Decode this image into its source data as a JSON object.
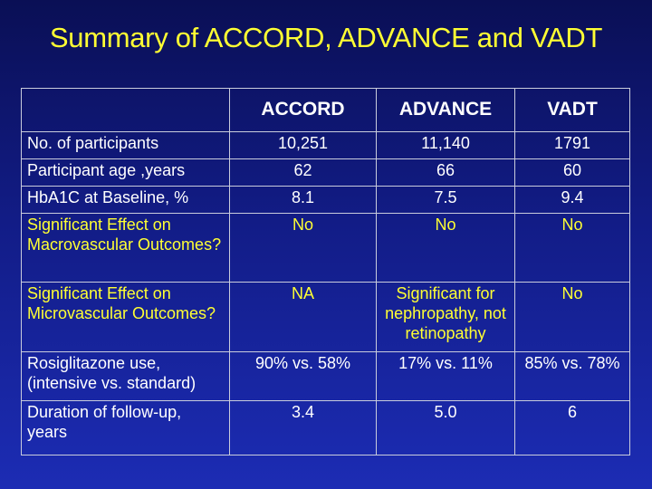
{
  "title": "Summary of ACCORD, ADVANCE and VADT",
  "table": {
    "headers": [
      "",
      "ACCORD",
      "ADVANCE",
      "VADT"
    ],
    "rows": [
      {
        "label": "No. of participants",
        "values": [
          "10,251",
          "11,140",
          "1791"
        ]
      },
      {
        "label": "Participant age ,years",
        "values": [
          "62",
          "66",
          "60"
        ]
      },
      {
        "label": "HbA1C at Baseline, %",
        "values": [
          "8.1",
          "7.5",
          "9.4"
        ]
      },
      {
        "label": "Significant Effect on Macrovascular Outcomes?",
        "values": [
          "No",
          "No",
          "No"
        ]
      },
      {
        "label": "Significant Effect on Microvascular Outcomes?",
        "values": [
          "NA",
          "Significant for nephropathy, not retinopathy",
          "No"
        ]
      },
      {
        "label": "Rosiglitazone use, (intensive vs. standard)",
        "values": [
          "90% vs. 58%",
          "17% vs. 11%",
          "85% vs. 78%"
        ]
      },
      {
        "label": "Duration of follow-up, years",
        "values": [
          "3.4",
          "5.0",
          "6"
        ]
      }
    ]
  },
  "colors": {
    "title": "#ffff33",
    "highlight_text": "#ffff33",
    "body_text": "#ffffff",
    "background_top": "#0a0f55",
    "background_bottom": "#1c2cb4"
  }
}
